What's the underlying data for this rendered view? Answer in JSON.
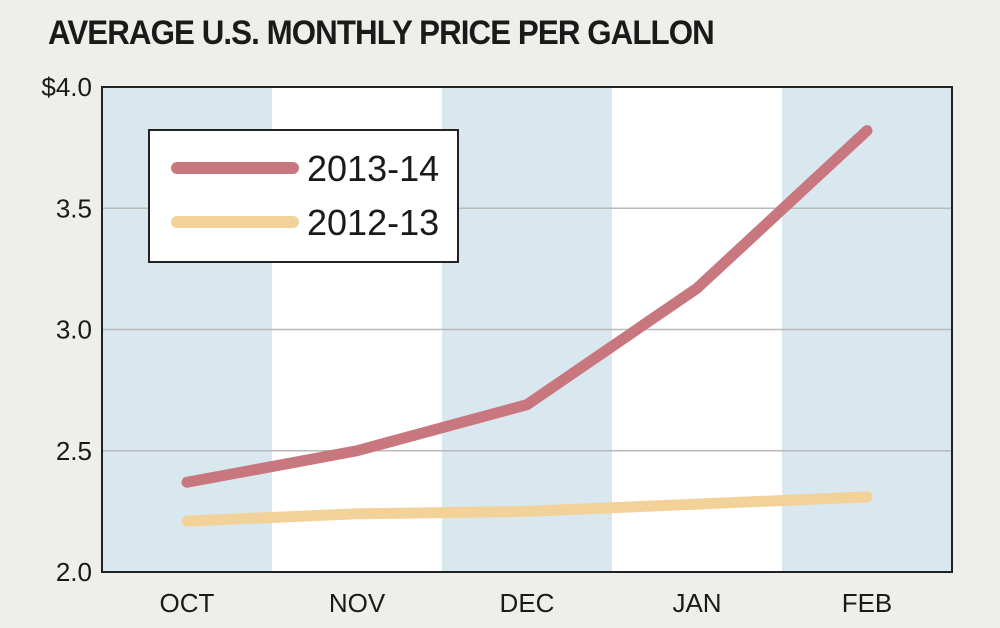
{
  "colors": {
    "page_background": "#eeeeea",
    "band_shaded": "#d9e7ef",
    "band_plain": "#ffffff",
    "series_2013_14": "#c9777f",
    "series_2012_13": "#f3d29a",
    "gridline": "#b9b9b9",
    "frame": "#222222"
  },
  "chart_data": {
    "type": "line",
    "title": "AVERAGE U.S. MONTHLY PRICE PER GALLON",
    "categories": [
      "OCT",
      "NOV",
      "DEC",
      "JAN",
      "FEB"
    ],
    "y_tick_labels": [
      "$4.0",
      "3.5",
      "3.0",
      "2.5",
      "2.0"
    ],
    "y_ticks": [
      4.0,
      3.5,
      3.0,
      2.5,
      2.0
    ],
    "ylim": [
      2.0,
      4.0
    ],
    "grid": true,
    "alternating_column_bands": true,
    "legend_position": "top-left",
    "series": [
      {
        "name": "2013-14",
        "values": [
          2.37,
          2.5,
          2.69,
          3.17,
          3.82
        ]
      },
      {
        "name": "2012-13",
        "values": [
          2.21,
          2.24,
          2.25,
          2.28,
          2.31
        ]
      }
    ]
  }
}
